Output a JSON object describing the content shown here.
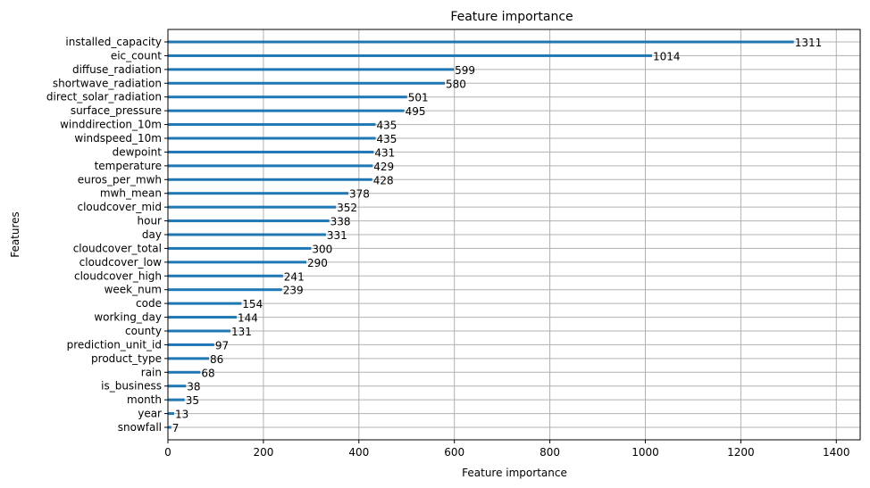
{
  "chart_data": {
    "type": "bar",
    "orientation": "horizontal",
    "title": "Feature importance",
    "xlabel": "Feature importance",
    "ylabel": "Features",
    "xlim": [
      0,
      1450
    ],
    "xticks": [
      0,
      200,
      400,
      600,
      800,
      1000,
      1200,
      1400
    ],
    "grid": true,
    "bar_color": "#1f77b4",
    "categories": [
      "installed_capacity",
      "eic_count",
      "diffuse_radiation",
      "shortwave_radiation",
      "direct_solar_radiation",
      "surface_pressure",
      "winddirection_10m",
      "windspeed_10m",
      "dewpoint",
      "temperature",
      "euros_per_mwh",
      "mwh_mean",
      "cloudcover_mid",
      "hour",
      "day",
      "cloudcover_total",
      "cloudcover_low",
      "cloudcover_high",
      "week_num",
      "code",
      "working_day",
      "county",
      "prediction_unit_id",
      "product_type",
      "rain",
      "is_business",
      "month",
      "year",
      "snowfall"
    ],
    "values": [
      1311,
      1014,
      599,
      580,
      501,
      495,
      435,
      435,
      431,
      429,
      428,
      378,
      352,
      338,
      331,
      300,
      290,
      241,
      239,
      154,
      144,
      131,
      97,
      86,
      68,
      38,
      35,
      13,
      7
    ]
  }
}
